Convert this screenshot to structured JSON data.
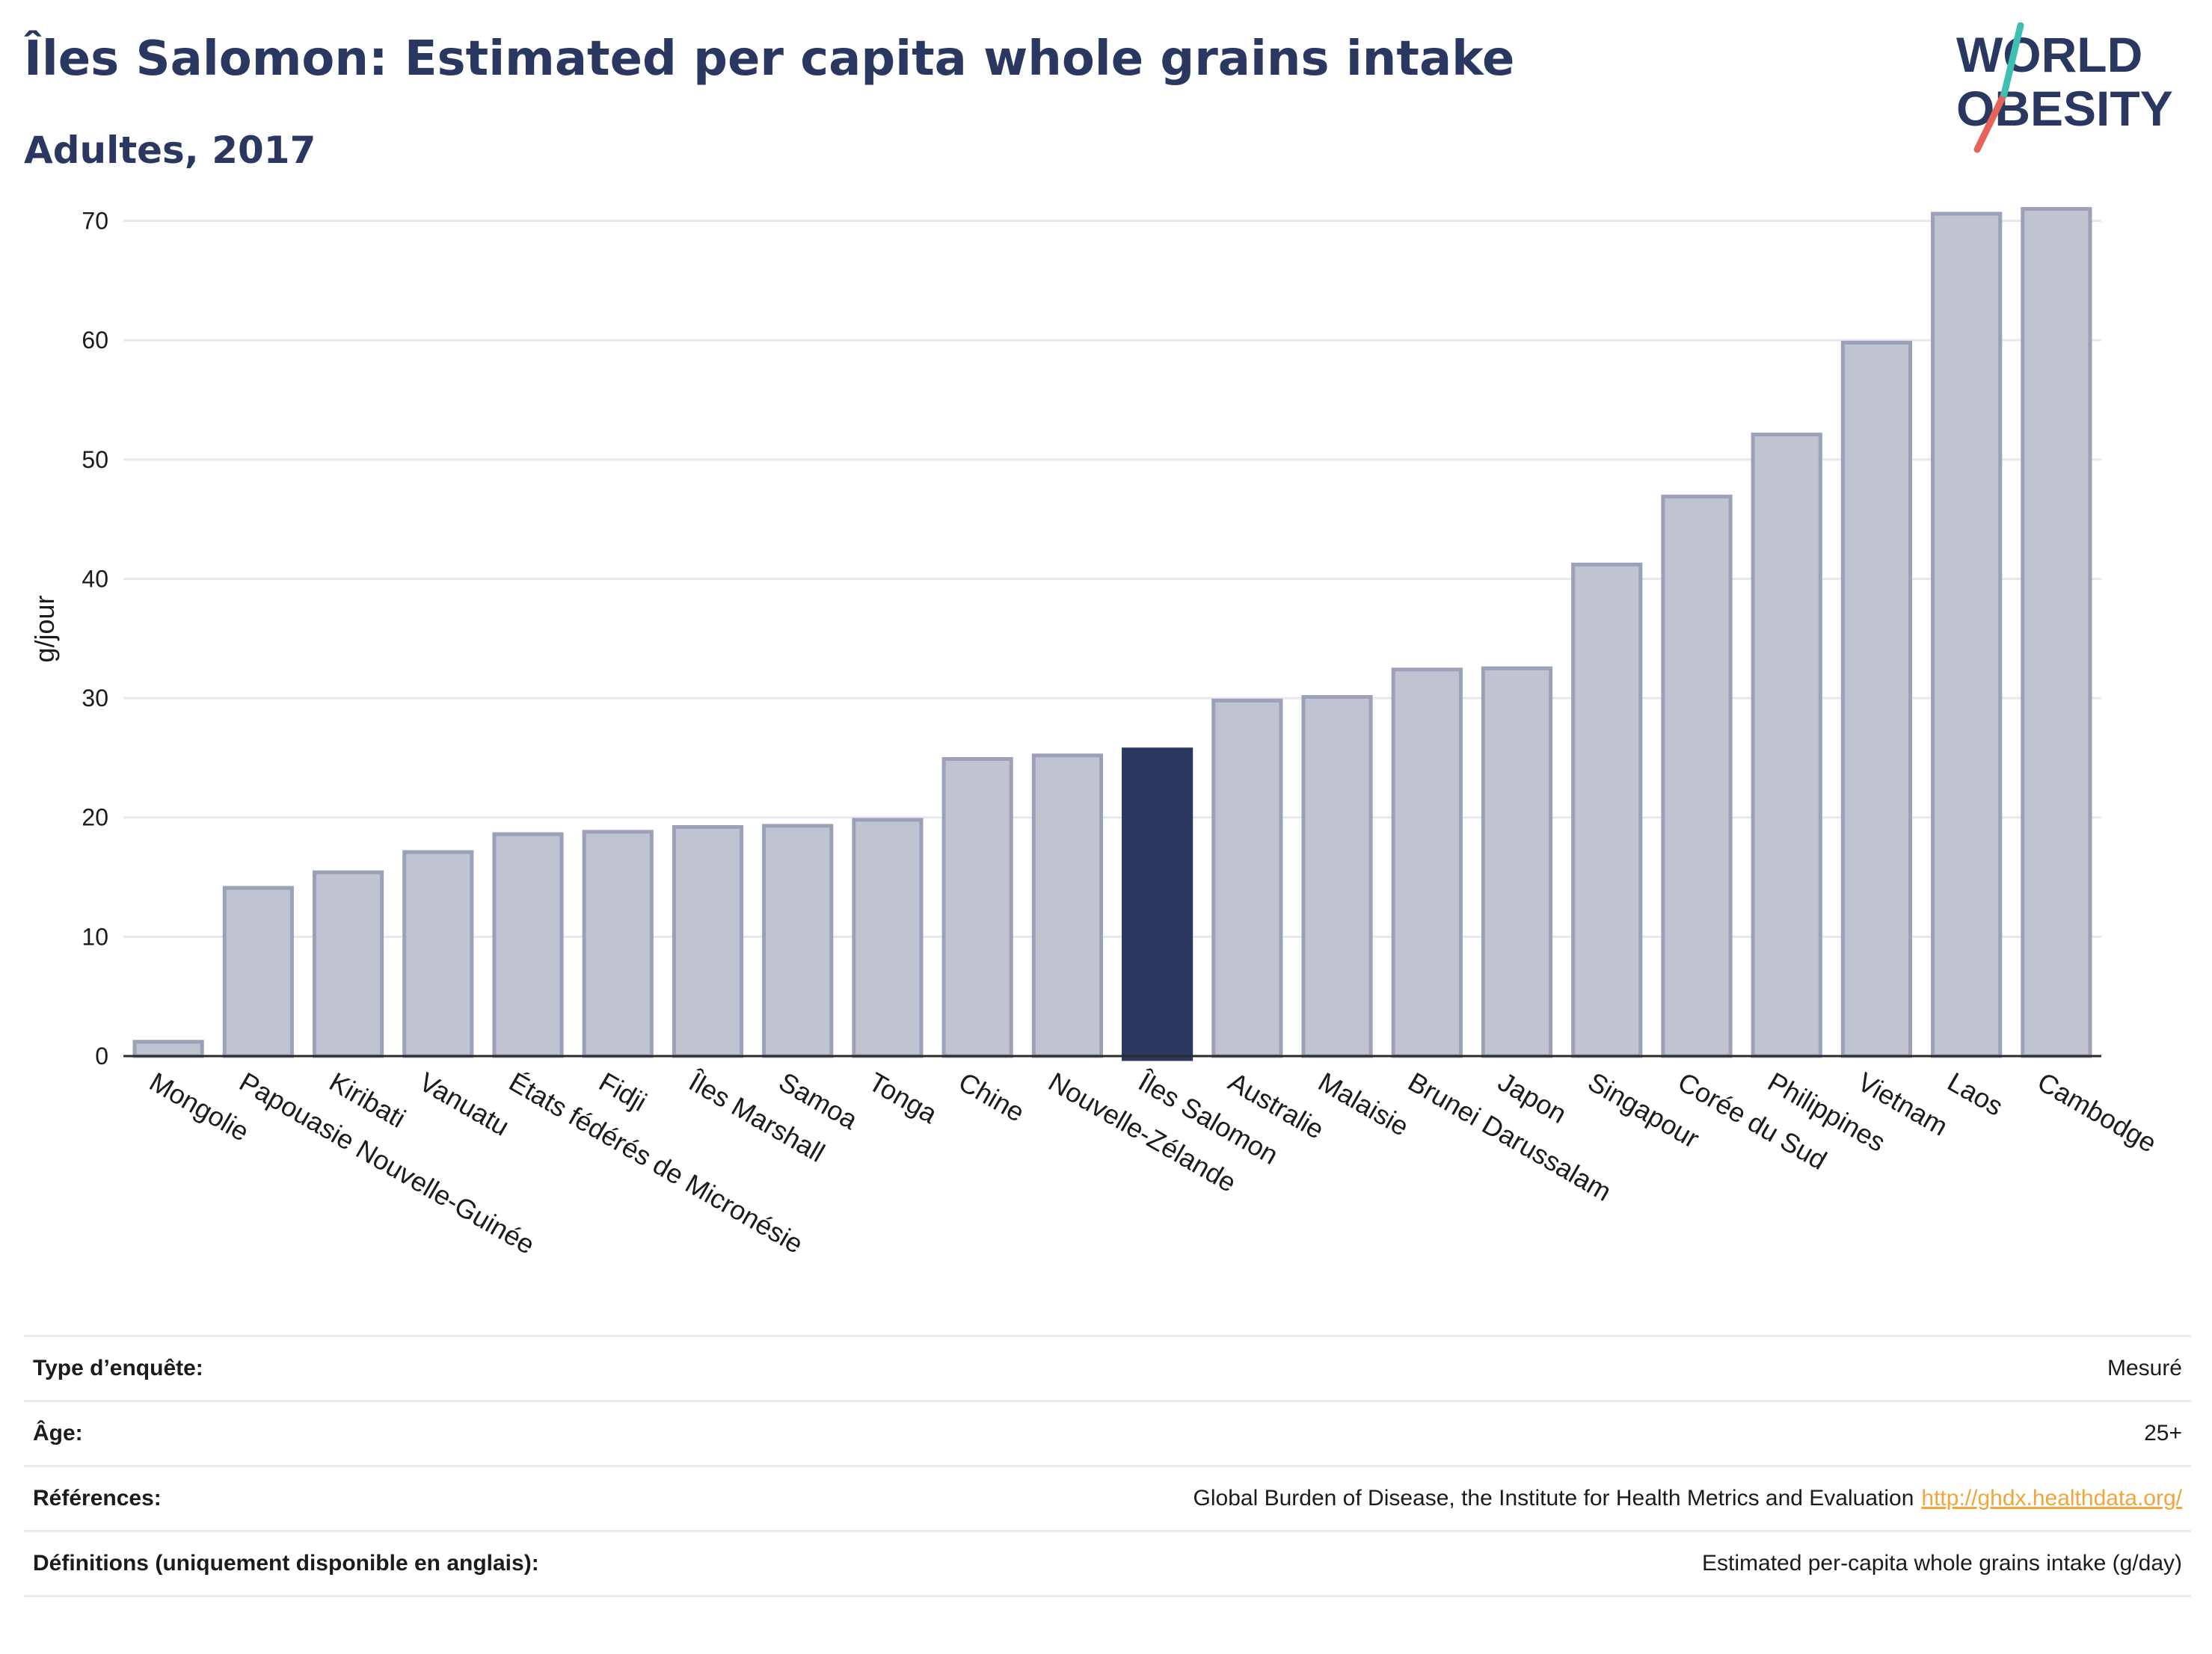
{
  "header": {
    "title": "Îles Salomon: Estimated per capita whole grains intake",
    "subtitle": "Adultes, 2017"
  },
  "logo": {
    "line1": "WORLD",
    "line2": "OBESITY",
    "colors": {
      "text": "#2a3760",
      "slash_red": "#e5645a",
      "slash_teal": "#3fbfb0"
    }
  },
  "chart_data": {
    "type": "bar",
    "title": "",
    "ylabel": "g/jour",
    "ylim": [
      0,
      70
    ],
    "yticks": [
      0,
      10,
      20,
      30,
      40,
      50,
      60,
      70
    ],
    "grid": true,
    "highlight": "Îles Salomon",
    "colors": {
      "bar": "#c0c4d1",
      "bar_stroke": "#9aa1b8",
      "highlight": "#2a3760"
    },
    "categories": [
      "Mongolie",
      "Papouasie Nouvelle-Guinée",
      "Kiribati",
      "Vanuatu",
      "États fédérés de Micronésie",
      "Fidji",
      "Îles Marshall",
      "Samoa",
      "Tonga",
      "Chine",
      "Nouvelle-Zélande",
      "Îles Salomon",
      "Australie",
      "Malaisie",
      "Brunei Darussalam",
      "Japon",
      "Singapour",
      "Corée du Sud",
      "Philippines",
      "Vietnam",
      "Laos",
      "Cambodge"
    ],
    "values": [
      1.2,
      14.1,
      15.4,
      17.1,
      18.6,
      18.8,
      19.2,
      19.3,
      19.8,
      24.9,
      25.2,
      25.7,
      29.8,
      30.1,
      32.4,
      32.5,
      41.2,
      46.9,
      52.1,
      59.8,
      70.6,
      71.0
    ]
  },
  "info": {
    "rows": [
      {
        "label": "Type d’enquête:",
        "value": "Mesuré"
      },
      {
        "label": "Âge:",
        "value": "25+"
      },
      {
        "label": "Références:",
        "value": "Global Burden of Disease, the Institute for Health Metrics and Evaluation",
        "link": "http://ghdx.healthdata.org/"
      },
      {
        "label": "Définitions (uniquement disponible en anglais):",
        "value": "Estimated per-capita whole grains intake (g/day)"
      }
    ]
  }
}
